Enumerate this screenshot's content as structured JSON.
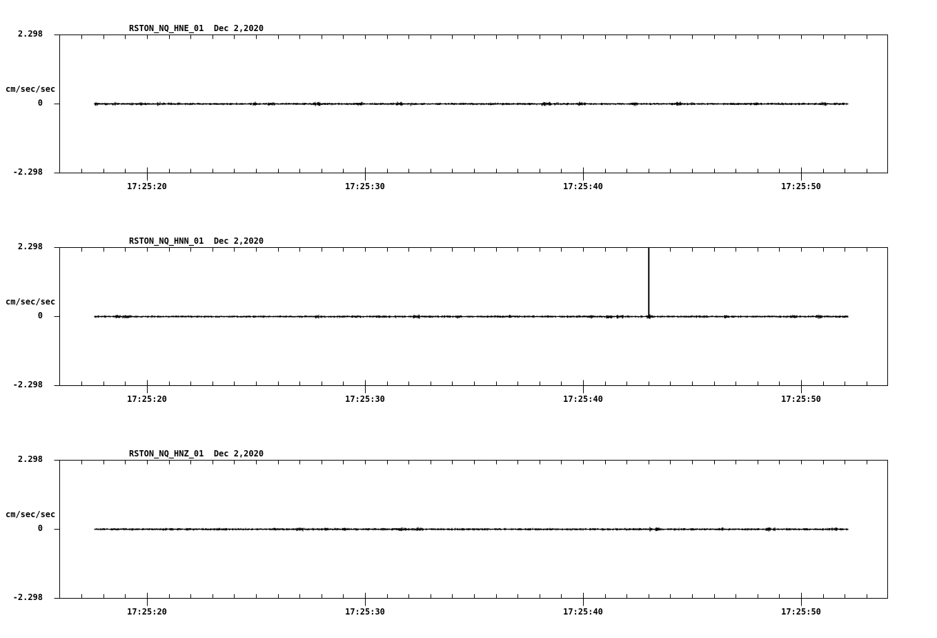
{
  "page": {
    "background_color": "#ffffff",
    "ink_color": "#000000"
  },
  "chart_data": {
    "type": "line",
    "subtype": "seismogram",
    "ylabel": "cm/sec/sec",
    "ylim": [
      -2.298,
      2.298
    ],
    "y_ticks": [
      "2.298",
      "0",
      "-2.298"
    ],
    "x_ticks": [
      "17:25:20",
      "17:25:30",
      "17:25:40",
      "17:25:50"
    ],
    "x_minor_tick_interval_sec": 1,
    "x_axis_range": [
      "17:25:16",
      "17:25:54"
    ],
    "trace_time_span": [
      "17:25:17.6",
      "17:25:52.1"
    ],
    "grid": false,
    "legend": null,
    "panels": [
      {
        "station": "RSTON_NQ_HNE_01",
        "date": "Dec 2,2020",
        "title": "RSTON_NQ_HNE_01  Dec 2,2020",
        "baseline": 0,
        "noise_peak_cm_s2": 0.05,
        "spike": null,
        "seed": 11
      },
      {
        "station": "RSTON_NQ_HNN_01",
        "date": "Dec 2,2020",
        "title": "RSTON_NQ_HNN_01  Dec 2,2020",
        "baseline": 0,
        "noise_peak_cm_s2": 0.05,
        "spike": {
          "time": "17:25:43",
          "value": 2.298,
          "clipped_at_axis": true
        },
        "seed": 23
      },
      {
        "station": "RSTON_NQ_HNZ_01",
        "date": "Dec 2,2020",
        "title": "RSTON_NQ_HNZ_01  Dec 2,2020",
        "baseline": 0,
        "noise_peak_cm_s2": 0.05,
        "spike": null,
        "seed": 37
      }
    ]
  }
}
